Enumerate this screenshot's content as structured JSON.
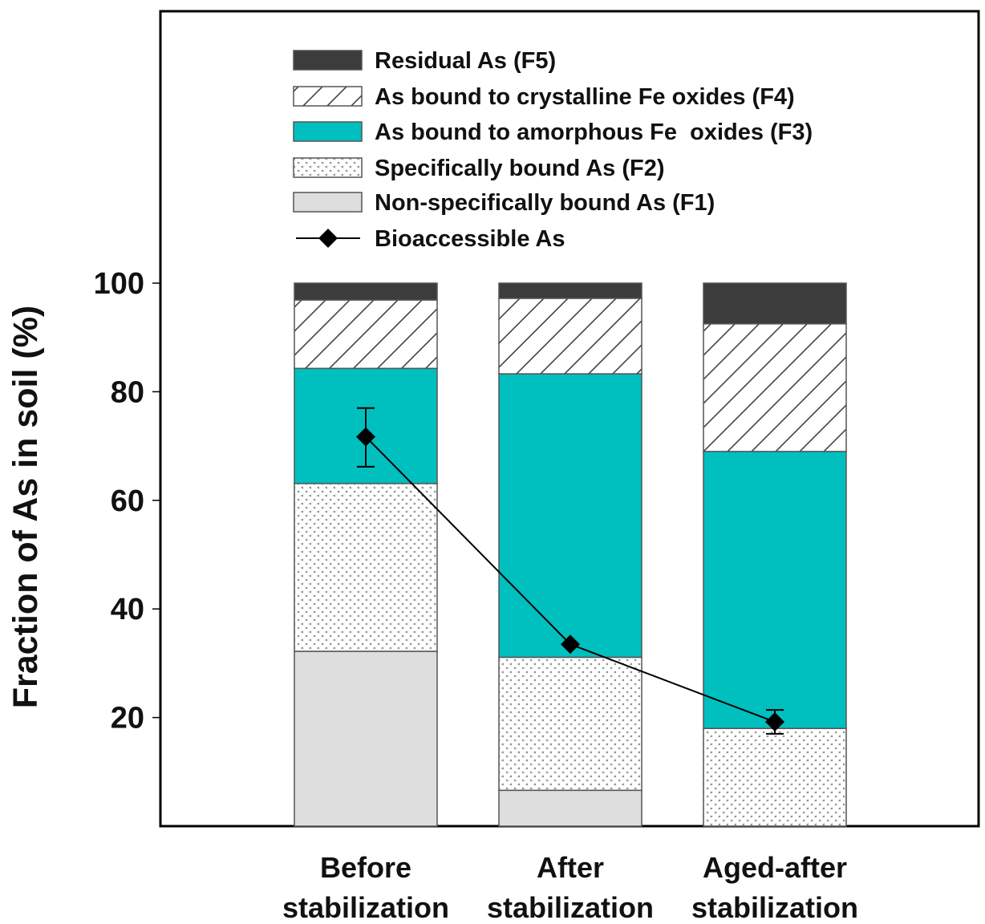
{
  "chart_data": {
    "type": "bar",
    "stacked": true,
    "title": "",
    "xlabel": "",
    "ylabel": "Fraction of As in soil (%)",
    "ylim": [
      0,
      100
    ],
    "yticks": [
      20,
      40,
      60,
      80,
      100
    ],
    "grid": false,
    "legend_position": "top",
    "categories": [
      [
        "Before",
        "stabilization"
      ],
      [
        "After",
        "stabilization"
      ],
      [
        "Aged-after",
        "stabilization"
      ]
    ],
    "series": [
      {
        "key": "F1",
        "name": "Non-specifically bound As (F1)",
        "color": "#dedede",
        "pattern": "solid",
        "values": [
          32.2,
          6.6,
          0.0
        ]
      },
      {
        "key": "F2",
        "name": "Specifically bound As (F2)",
        "color": "#ffffff",
        "pattern": "dots",
        "values": [
          30.9,
          24.5,
          18.0
        ]
      },
      {
        "key": "F3",
        "name": "As bound to amorphous Fe  oxides (F3)",
        "color": "#00bfbf",
        "pattern": "solid",
        "values": [
          21.2,
          52.2,
          51.0
        ]
      },
      {
        "key": "F4",
        "name": "As bound to crystalline Fe oxides (F4)",
        "color": "#ffffff",
        "pattern": "hatch",
        "values": [
          12.6,
          13.9,
          23.5
        ]
      },
      {
        "key": "F5",
        "name": "Residual As (F5)",
        "color": "#3c3c3c",
        "pattern": "solid",
        "values": [
          3.1,
          2.8,
          7.5
        ]
      }
    ],
    "line_series": {
      "name": "Bioaccessible As",
      "marker": "diamond",
      "color": "#000000",
      "values": [
        71.7,
        33.5,
        19.2
      ],
      "error_low": [
        66.2,
        33.5,
        17.0
      ],
      "error_high": [
        77.0,
        33.5,
        21.4
      ]
    },
    "legend_order": [
      "F5",
      "F4",
      "F3",
      "F2",
      "F1",
      "line"
    ]
  }
}
